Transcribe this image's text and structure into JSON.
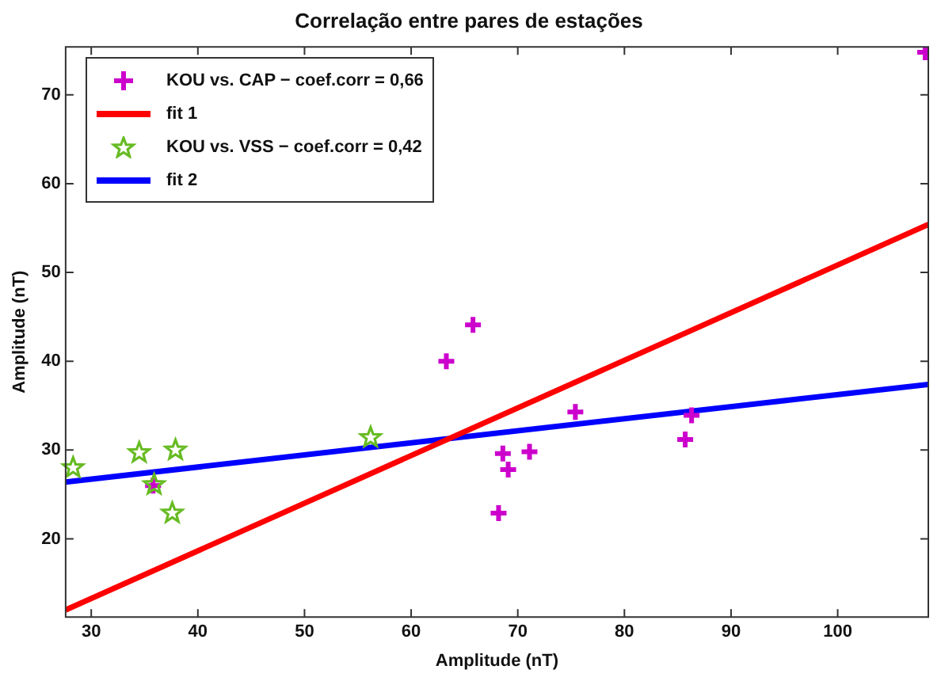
{
  "chart_data": {
    "type": "scatter",
    "title": "Correlação entre pares de estações",
    "xlabel": "Amplitude (nT)",
    "ylabel": "Amplitude (nT)",
    "xlim": [
      27.6,
      108.5
    ],
    "ylim": [
      11.2,
      75.4
    ],
    "xticks": [
      30,
      40,
      50,
      60,
      70,
      80,
      90,
      100
    ],
    "yticks": [
      20,
      30,
      40,
      50,
      60,
      70
    ],
    "grid": false,
    "legend": "top left",
    "series": [
      {
        "name": "KOU vs. CAP − coef.corr = 0,66",
        "marker": "cross",
        "color": "#cc00cc",
        "x": [
          35.8,
          63.3,
          65.8,
          68.2,
          68.6,
          69.1,
          71.1,
          75.4,
          85.7,
          86.3,
          108.2
        ],
        "values": [
          26.0,
          40.0,
          44.1,
          22.9,
          29.6,
          27.8,
          29.8,
          34.3,
          31.2,
          33.9,
          74.8
        ]
      },
      {
        "name": "fit 1",
        "type": "line",
        "marker": "none",
        "color": "#ff0000",
        "x": [
          27.6,
          108.5
        ],
        "values": [
          12.0,
          55.4
        ]
      },
      {
        "name": "KOU vs. VSS − coef.corr = 0,42",
        "marker": "star",
        "color": "#66bb22",
        "x": [
          28.3,
          34.5,
          35.9,
          37.6,
          37.9,
          56.2
        ],
        "values": [
          28.0,
          29.7,
          26.1,
          22.9,
          30.0,
          31.4
        ]
      },
      {
        "name": "fit 2",
        "type": "line",
        "marker": "none",
        "color": "#0000ff",
        "x": [
          27.6,
          108.5
        ],
        "values": [
          26.4,
          37.4
        ]
      }
    ]
  }
}
